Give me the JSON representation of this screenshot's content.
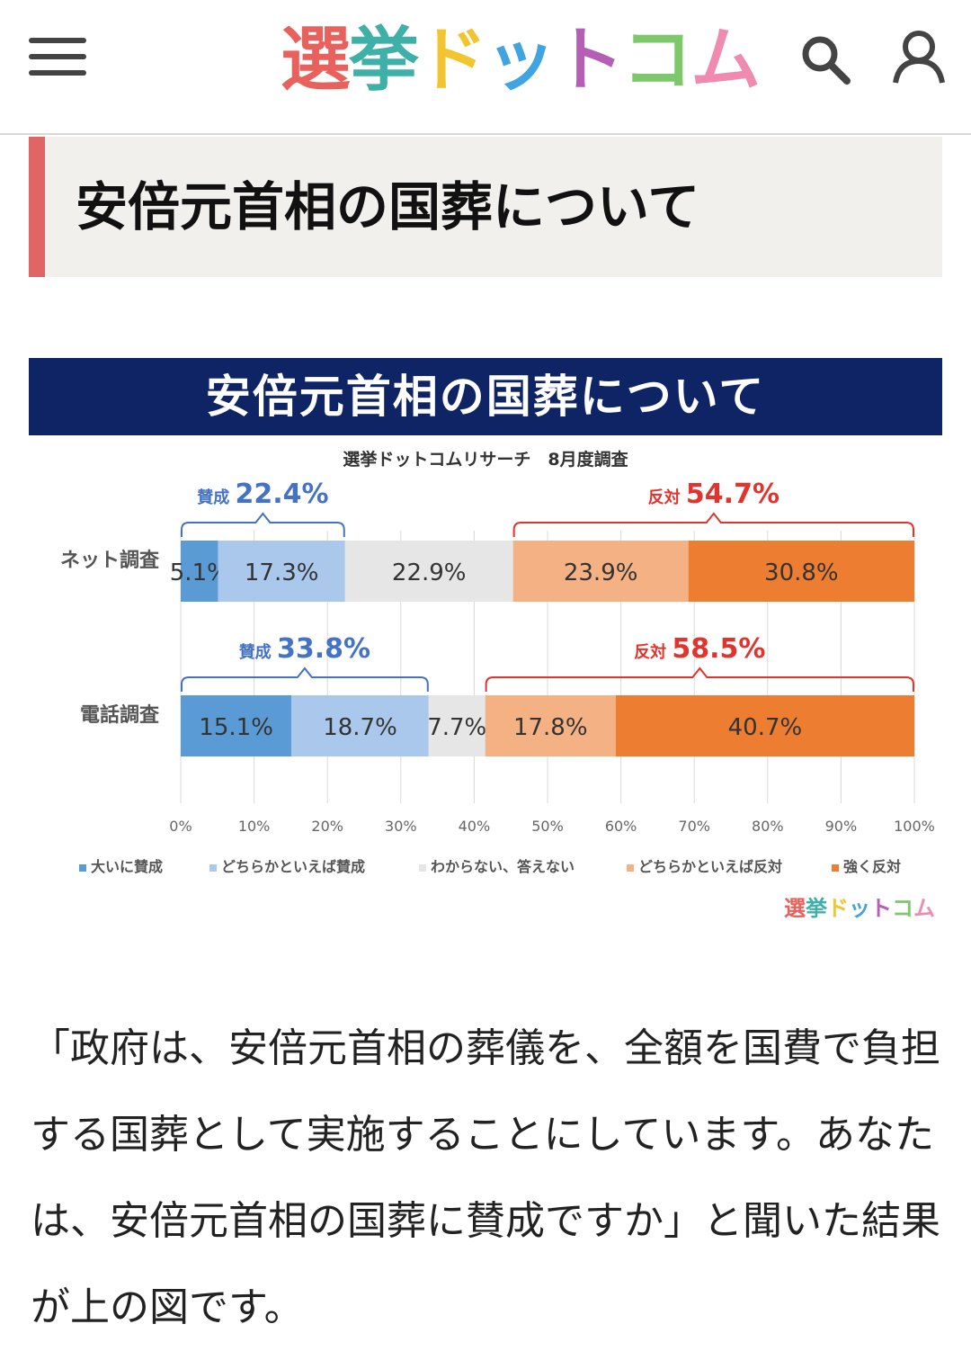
{
  "header": {
    "logo_chars": [
      "選",
      "挙",
      "ド",
      "ッ",
      "ト",
      "コ",
      "ム"
    ],
    "logo_colors": [
      "#e8615c",
      "#3fb0a8",
      "#f2c530",
      "#3fa4e0",
      "#b45fb5",
      "#7cc86a",
      "#f08bb0"
    ],
    "menu_icon": "hamburger-icon",
    "search_icon": "search-icon",
    "user_icon": "user-icon"
  },
  "article": {
    "heading": "安倍元首相の国葬について",
    "paragraph": "「政府は、安倍元首相の葬儀を、全額を国費で負担する国葬として実施することにしています。あなたは、安倍元首相の国葬に賛成ですか」と聞いた結果が上の図です。"
  },
  "chart_data": {
    "type": "bar",
    "stacked": true,
    "orientation": "horizontal",
    "title": "安倍元首相の国葬について",
    "subtitle": "選挙ドットコムリサーチ　8月度調査",
    "categories": [
      "ネット調査",
      "電話調査"
    ],
    "series": [
      {
        "name": "大いに賛成",
        "values": [
          5.1,
          15.1
        ],
        "labels": [
          "5.1%",
          "15.1%"
        ],
        "color": "#5b9bd5"
      },
      {
        "name": "どちらかといえば賛成",
        "values": [
          17.3,
          18.7
        ],
        "labels": [
          "17.3%",
          "18.7%"
        ],
        "color": "#a9c8ec"
      },
      {
        "name": "わからない、答えない",
        "values": [
          22.9,
          7.7
        ],
        "labels": [
          "22.9%",
          "7.7%"
        ],
        "color": "#e6e6e6"
      },
      {
        "name": "どちらかといえば反対",
        "values": [
          23.9,
          17.8
        ],
        "labels": [
          "23.9%",
          "17.8%"
        ],
        "color": "#f4b183"
      },
      {
        "name": "強く反対",
        "values": [
          30.8,
          40.7
        ],
        "labels": [
          "30.8%",
          "40.7%"
        ],
        "color": "#ed7d31"
      }
    ],
    "groups": [
      {
        "prefix": "賛成",
        "values": [
          "22.4%",
          "33.8%"
        ],
        "color": "#4472c4"
      },
      {
        "prefix": "反対",
        "values": [
          "54.7%",
          "58.5%"
        ],
        "color": "#e0342c"
      }
    ],
    "xlim": [
      0,
      100
    ],
    "xticks": [
      "0%",
      "10%",
      "20%",
      "30%",
      "40%",
      "50%",
      "60%",
      "70%",
      "80%",
      "90%",
      "100%"
    ],
    "legend_position": "bottom",
    "watermark": "選挙ドットコム"
  }
}
